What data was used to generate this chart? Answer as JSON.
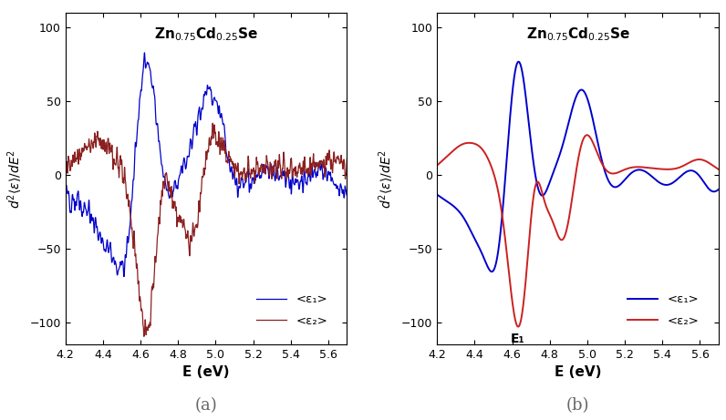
{
  "xlim": [
    4.2,
    5.7
  ],
  "ylim": [
    -115,
    110
  ],
  "yticks": [
    -100,
    -50,
    0,
    50,
    100
  ],
  "xticks": [
    4.2,
    4.4,
    4.6,
    4.8,
    5.0,
    5.2,
    5.4,
    5.6
  ],
  "xlabel": "E (eV)",
  "blue_color": "#0000CC",
  "red_color_a": "#8B2020",
  "red_color_b": "#CC2020",
  "label_eps1": "<ε₁>",
  "label_eps2": "<ε₂>",
  "label_a": "(a)",
  "label_b": "(b)",
  "E1_label": "E₁",
  "E1_x": 4.63,
  "E1_y": -107
}
